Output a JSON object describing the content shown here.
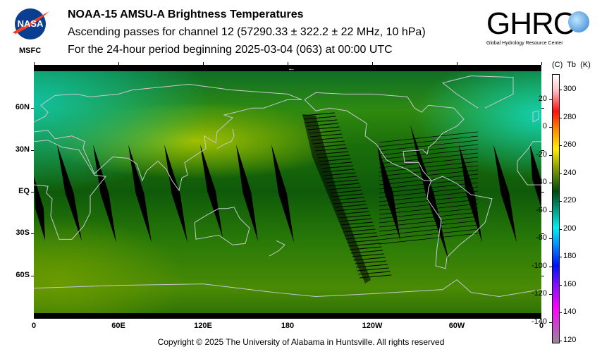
{
  "header": {
    "title": "NOAA-15 AMSU-A Brightness Temperatures",
    "subtitle": "Ascending passes for channel 12 (57290.33 ± 322.2 ± 22 MHz, 10 hPa)",
    "period": "For the 24-hour period beginning 2025-03-04 (063) at 00:00 UTC",
    "left_logo": {
      "text": "NASA",
      "caption": "MSFC"
    },
    "right_logo": {
      "text": "GHRC",
      "caption": "Global Hydrology Resource Center"
    }
  },
  "map": {
    "lat_ticks": [
      {
        "label": "60N",
        "lat": 60
      },
      {
        "label": "30N",
        "lat": 30
      },
      {
        "label": "EQ",
        "lat": 0
      },
      {
        "label": "30S",
        "lat": -30
      },
      {
        "label": "60S",
        "lat": -60
      }
    ],
    "lon_ticks": [
      {
        "label": "0",
        "lon": 0
      },
      {
        "label": "60E",
        "lon": 60
      },
      {
        "label": "120E",
        "lon": 120
      },
      {
        "label": "180",
        "lon": 180
      },
      {
        "label": "120W",
        "lon": 240
      },
      {
        "label": "60W",
        "lon": 300
      },
      {
        "label": "0",
        "lon": 360
      }
    ],
    "direction_arrow": "←"
  },
  "colorbar": {
    "header": "(C)  Tb  (K)",
    "kelvin_ticks": [
      300,
      280,
      260,
      240,
      220,
      200,
      180,
      160,
      140,
      120
    ],
    "celsius_ticks": [
      20,
      0,
      -20,
      -40,
      -60,
      -80,
      -100,
      -120,
      -140
    ],
    "colors": {
      "white": "#ffffff",
      "pink": "#ffc0c8",
      "red": "#ff1010",
      "orange": "#ff8800",
      "yellow": "#ffee00",
      "olive": "#8aa000",
      "darkgreen": "#004a10",
      "teal": "#00a890",
      "cyan": "#00f0f0",
      "lightblue": "#0090ff",
      "blue": "#0010ff",
      "purple": "#8a10ff",
      "magenta": "#ff00ff",
      "gray": "#988898"
    }
  },
  "footer": {
    "copyright": "Copyright © 2025 The University of Alabama in Huntsville.  All rights reserved"
  }
}
